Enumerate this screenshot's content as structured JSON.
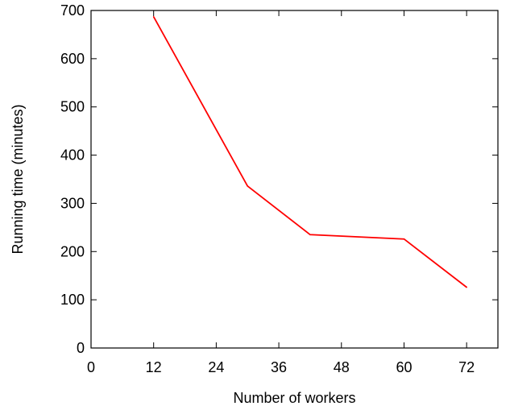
{
  "chart_data": {
    "type": "line",
    "title": "",
    "xlabel": "Number of workers",
    "ylabel": "Running time (minutes)",
    "xlim": [
      0,
      78
    ],
    "ylim": [
      0,
      700
    ],
    "xticks": [
      0,
      12,
      24,
      36,
      48,
      60,
      72
    ],
    "yticks": [
      0,
      100,
      200,
      300,
      400,
      500,
      600,
      700
    ],
    "grid": false,
    "legend": "none",
    "series": [
      {
        "color": "#ff0000",
        "x": [
          12,
          30,
          42,
          60,
          72
        ],
        "y": [
          687,
          336,
          235,
          226,
          126
        ]
      }
    ]
  }
}
